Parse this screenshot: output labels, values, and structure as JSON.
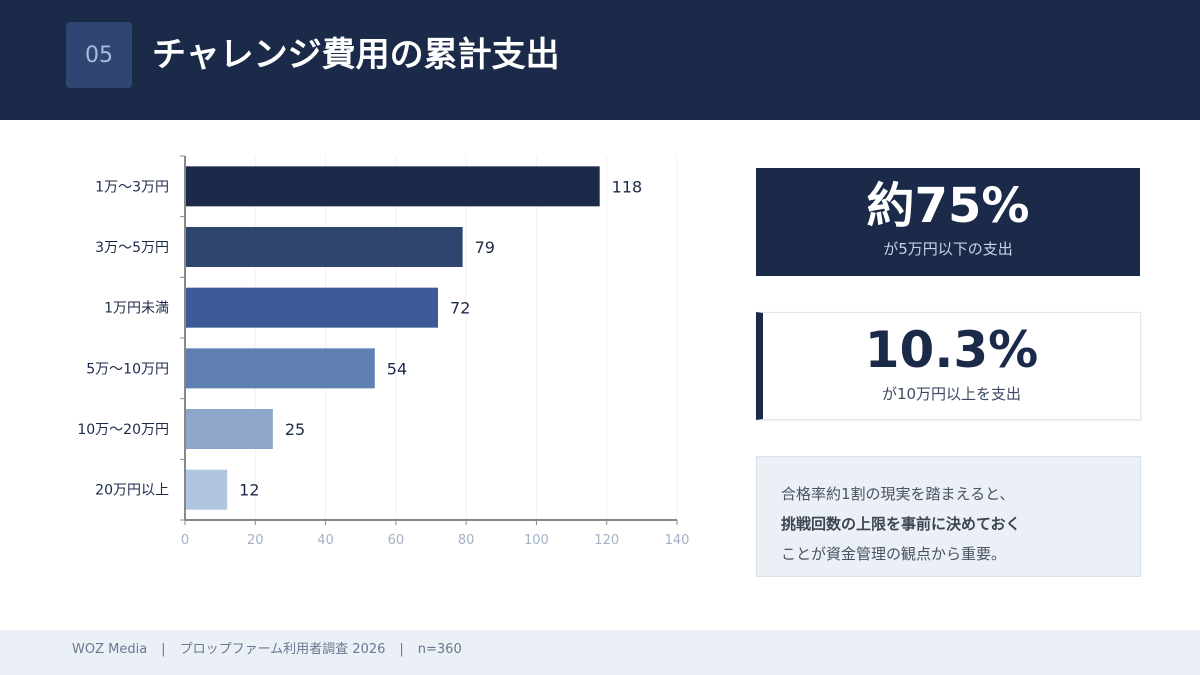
{
  "header": {
    "number": "05",
    "title": "チャレンジ費用の累計支出"
  },
  "chart_data": {
    "type": "bar",
    "orientation": "horizontal",
    "categories": [
      "1万〜3万円",
      "3万〜5万円",
      "1万円未満",
      "5万〜10万円",
      "10万〜20万円",
      "20万円以上"
    ],
    "values": [
      118,
      79,
      72,
      54,
      25,
      12
    ],
    "colors": [
      "#1c2a4a",
      "#2e456e",
      "#3c5a96",
      "#5f7fb2",
      "#8ea6c9",
      "#b0c6de"
    ],
    "xlim": [
      0,
      140
    ],
    "xticks": [
      0,
      20,
      40,
      60,
      80,
      100,
      120,
      140
    ],
    "grid": true,
    "title": "",
    "xlabel": "",
    "ylabel": ""
  },
  "cards": [
    {
      "big": "約75%",
      "sub": "が5万円以下の支出"
    },
    {
      "big": "10.3%",
      "sub": "が10万円以上を支出"
    }
  ],
  "note": {
    "line1": "合格率約1割の現実を踏まえると、",
    "line2": "挑戦回数の上限を事前に決めておく",
    "line3": "ことが資金管理の観点から重要。"
  },
  "footer": {
    "source": "WOZ Media",
    "sep1": "|",
    "survey": "プロップファーム利用者調査 2026",
    "sep2": "|",
    "n": "n=360"
  }
}
